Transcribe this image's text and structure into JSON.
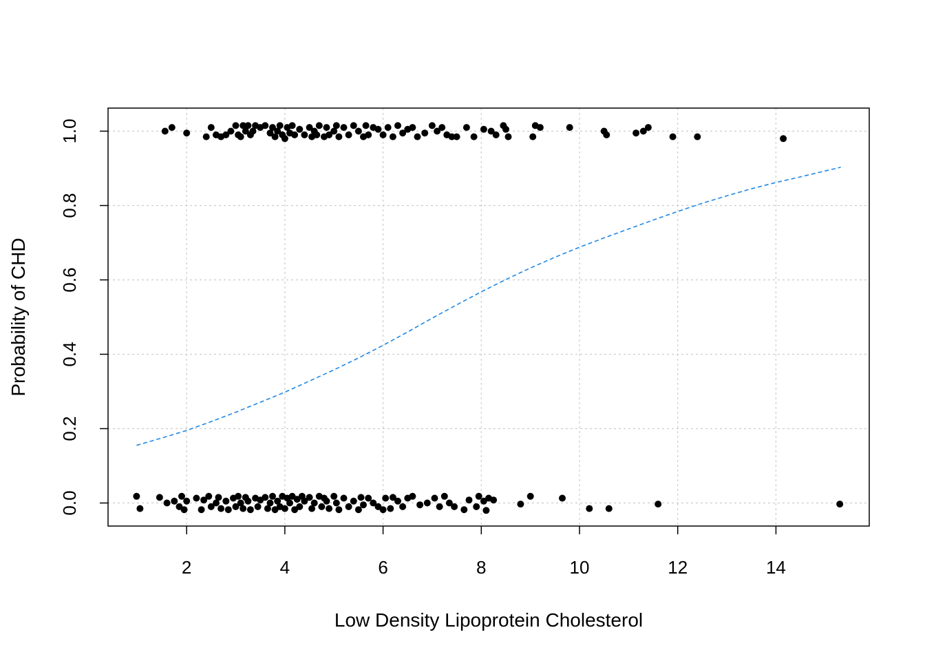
{
  "chart_data": {
    "type": "scatter",
    "title": "",
    "xlabel": "Low Density Lipoprotein Cholesterol",
    "ylabel": "Probability of CHD",
    "xlim": [
      0.4,
      15.9
    ],
    "ylim": [
      -0.062,
      1.062
    ],
    "x_ticks": [
      2,
      4,
      6,
      8,
      10,
      12,
      14
    ],
    "y_ticks": [
      0.0,
      0.2,
      0.4,
      0.6,
      0.8,
      1.0
    ],
    "x_tick_labels": [
      "2",
      "4",
      "6",
      "8",
      "10",
      "12",
      "14"
    ],
    "y_tick_labels": [
      "0.0",
      "0.2",
      "0.4",
      "0.6",
      "0.8",
      "1.0"
    ],
    "grid": true,
    "grid_color": "#cccccc",
    "curve_color": "#1e88e5",
    "point_color": "#000000",
    "series": [
      {
        "type": "scatter",
        "points_y1": [
          [
            1.56,
            1.0
          ],
          [
            1.7,
            1.01
          ],
          [
            2.0,
            0.995
          ],
          [
            2.4,
            0.985
          ],
          [
            2.5,
            1.01
          ],
          [
            2.6,
            0.99
          ],
          [
            2.7,
            0.985
          ],
          [
            2.8,
            0.99
          ],
          [
            2.9,
            1.0
          ],
          [
            3.0,
            1.015
          ],
          [
            3.05,
            0.99
          ],
          [
            3.1,
            0.985
          ],
          [
            3.15,
            1.015
          ],
          [
            3.2,
            1.0
          ],
          [
            3.25,
            1.015
          ],
          [
            3.3,
            0.99
          ],
          [
            3.35,
            1.0
          ],
          [
            3.4,
            1.015
          ],
          [
            3.5,
            1.01
          ],
          [
            3.6,
            1.015
          ],
          [
            3.7,
            0.995
          ],
          [
            3.75,
            1.01
          ],
          [
            3.8,
            0.985
          ],
          [
            3.85,
            1.0
          ],
          [
            3.9,
            1.015
          ],
          [
            3.95,
            0.99
          ],
          [
            4.0,
            0.98
          ],
          [
            4.05,
            1.01
          ],
          [
            4.1,
            0.995
          ],
          [
            4.15,
            1.015
          ],
          [
            4.2,
            0.99
          ],
          [
            4.3,
            1.005
          ],
          [
            4.4,
            0.99
          ],
          [
            4.5,
            1.01
          ],
          [
            4.55,
            0.985
          ],
          [
            4.6,
            1.0
          ],
          [
            4.65,
            0.99
          ],
          [
            4.7,
            1.015
          ],
          [
            4.8,
            0.985
          ],
          [
            4.85,
            1.01
          ],
          [
            4.9,
            0.99
          ],
          [
            5.0,
            1.0
          ],
          [
            5.05,
            1.015
          ],
          [
            5.1,
            0.985
          ],
          [
            5.2,
            1.01
          ],
          [
            5.3,
            0.99
          ],
          [
            5.4,
            1.015
          ],
          [
            5.5,
            1.0
          ],
          [
            5.6,
            0.985
          ],
          [
            5.65,
            1.015
          ],
          [
            5.7,
            0.99
          ],
          [
            5.8,
            1.01
          ],
          [
            5.9,
            1.005
          ],
          [
            6.0,
            0.99
          ],
          [
            6.1,
            1.01
          ],
          [
            6.2,
            0.985
          ],
          [
            6.3,
            1.015
          ],
          [
            6.4,
            0.995
          ],
          [
            6.5,
            1.005
          ],
          [
            6.6,
            1.01
          ],
          [
            6.7,
            0.985
          ],
          [
            6.85,
            0.995
          ],
          [
            7.0,
            1.015
          ],
          [
            7.1,
            1.0
          ],
          [
            7.2,
            1.01
          ],
          [
            7.3,
            0.99
          ],
          [
            7.4,
            0.985
          ],
          [
            7.5,
            0.985
          ],
          [
            7.7,
            1.01
          ],
          [
            7.85,
            0.985
          ],
          [
            8.05,
            1.005
          ],
          [
            8.2,
            1.0
          ],
          [
            8.3,
            0.99
          ],
          [
            8.45,
            1.015
          ],
          [
            8.5,
            1.005
          ],
          [
            8.55,
            0.985
          ],
          [
            9.05,
            0.985
          ],
          [
            9.1,
            1.015
          ],
          [
            9.2,
            1.01
          ],
          [
            9.8,
            1.01
          ],
          [
            10.5,
            1.0
          ],
          [
            10.55,
            0.99
          ],
          [
            11.15,
            0.995
          ],
          [
            11.3,
            1.0
          ],
          [
            11.4,
            1.01
          ],
          [
            11.9,
            0.985
          ],
          [
            12.4,
            0.985
          ],
          [
            14.15,
            0.98
          ]
        ],
        "points_y0": [
          [
            0.98,
            0.018
          ],
          [
            1.05,
            -0.015
          ],
          [
            1.45,
            0.015
          ],
          [
            1.6,
            0.0
          ],
          [
            1.75,
            0.005
          ],
          [
            1.85,
            -0.01
          ],
          [
            1.9,
            0.018
          ],
          [
            2.0,
            0.005
          ],
          [
            1.95,
            -0.018
          ],
          [
            2.2,
            0.013
          ],
          [
            2.3,
            -0.018
          ],
          [
            2.35,
            0.008
          ],
          [
            2.45,
            0.018
          ],
          [
            2.5,
            -0.01
          ],
          [
            2.6,
            0.0
          ],
          [
            2.65,
            0.015
          ],
          [
            2.7,
            -0.015
          ],
          [
            2.8,
            0.005
          ],
          [
            2.85,
            -0.018
          ],
          [
            2.95,
            0.013
          ],
          [
            3.0,
            -0.01
          ],
          [
            3.05,
            0.018
          ],
          [
            3.1,
            0.0
          ],
          [
            3.15,
            -0.015
          ],
          [
            3.2,
            0.015
          ],
          [
            3.25,
            0.005
          ],
          [
            3.3,
            -0.018
          ],
          [
            3.4,
            0.013
          ],
          [
            3.45,
            -0.01
          ],
          [
            3.5,
            0.008
          ],
          [
            3.6,
            0.015
          ],
          [
            3.65,
            -0.015
          ],
          [
            3.7,
            0.0
          ],
          [
            3.75,
            0.018
          ],
          [
            3.8,
            -0.018
          ],
          [
            3.85,
            0.005
          ],
          [
            3.9,
            -0.01
          ],
          [
            3.95,
            0.018
          ],
          [
            4.0,
            -0.015
          ],
          [
            4.05,
            0.013
          ],
          [
            4.1,
            0.0
          ],
          [
            4.15,
            0.018
          ],
          [
            4.2,
            -0.018
          ],
          [
            4.25,
            0.01
          ],
          [
            4.3,
            -0.01
          ],
          [
            4.35,
            0.018
          ],
          [
            4.4,
            0.005
          ],
          [
            4.5,
            0.015
          ],
          [
            4.55,
            -0.015
          ],
          [
            4.6,
            0.0
          ],
          [
            4.7,
            0.018
          ],
          [
            4.75,
            -0.01
          ],
          [
            4.8,
            0.013
          ],
          [
            4.85,
            0.005
          ],
          [
            4.9,
            -0.015
          ],
          [
            5.0,
            0.018
          ],
          [
            5.05,
            0.0
          ],
          [
            5.1,
            -0.018
          ],
          [
            5.2,
            0.013
          ],
          [
            5.3,
            -0.01
          ],
          [
            5.4,
            0.005
          ],
          [
            5.5,
            -0.018
          ],
          [
            5.55,
            0.015
          ],
          [
            5.6,
            -0.005
          ],
          [
            5.7,
            0.013
          ],
          [
            5.8,
            0.0
          ],
          [
            5.9,
            -0.01
          ],
          [
            6.0,
            -0.018
          ],
          [
            6.05,
            0.013
          ],
          [
            6.15,
            -0.015
          ],
          [
            6.2,
            0.015
          ],
          [
            6.3,
            0.005
          ],
          [
            6.4,
            -0.01
          ],
          [
            6.5,
            0.013
          ],
          [
            6.6,
            0.018
          ],
          [
            6.75,
            -0.005
          ],
          [
            6.9,
            0.0
          ],
          [
            7.05,
            0.013
          ],
          [
            7.15,
            -0.01
          ],
          [
            7.25,
            0.018
          ],
          [
            7.35,
            0.0
          ],
          [
            7.45,
            -0.01
          ],
          [
            7.65,
            -0.018
          ],
          [
            7.75,
            0.008
          ],
          [
            7.9,
            -0.01
          ],
          [
            7.95,
            0.018
          ],
          [
            8.05,
            0.005
          ],
          [
            8.1,
            -0.02
          ],
          [
            8.15,
            0.013
          ],
          [
            8.25,
            0.008
          ],
          [
            8.8,
            -0.003
          ],
          [
            9.0,
            0.018
          ],
          [
            9.65,
            0.013
          ],
          [
            10.2,
            -0.015
          ],
          [
            10.6,
            -0.015
          ],
          [
            11.6,
            -0.003
          ],
          [
            15.3,
            -0.003
          ]
        ]
      },
      {
        "type": "line",
        "style": "dashed",
        "x": [
          0.98,
          1.5,
          2.0,
          2.5,
          3.0,
          3.5,
          4.0,
          4.5,
          5.0,
          5.5,
          6.0,
          6.5,
          7.0,
          7.5,
          8.0,
          8.5,
          9.0,
          9.5,
          10.0,
          10.5,
          11.0,
          11.5,
          12.0,
          12.5,
          13.0,
          13.5,
          14.0,
          14.5,
          15.0,
          15.32
        ],
        "y": [
          0.155,
          0.175,
          0.195,
          0.219,
          0.244,
          0.271,
          0.298,
          0.328,
          0.358,
          0.39,
          0.424,
          0.46,
          0.497,
          0.533,
          0.568,
          0.601,
          0.632,
          0.661,
          0.688,
          0.713,
          0.737,
          0.761,
          0.784,
          0.806,
          0.826,
          0.845,
          0.862,
          0.877,
          0.893,
          0.903
        ]
      }
    ]
  }
}
